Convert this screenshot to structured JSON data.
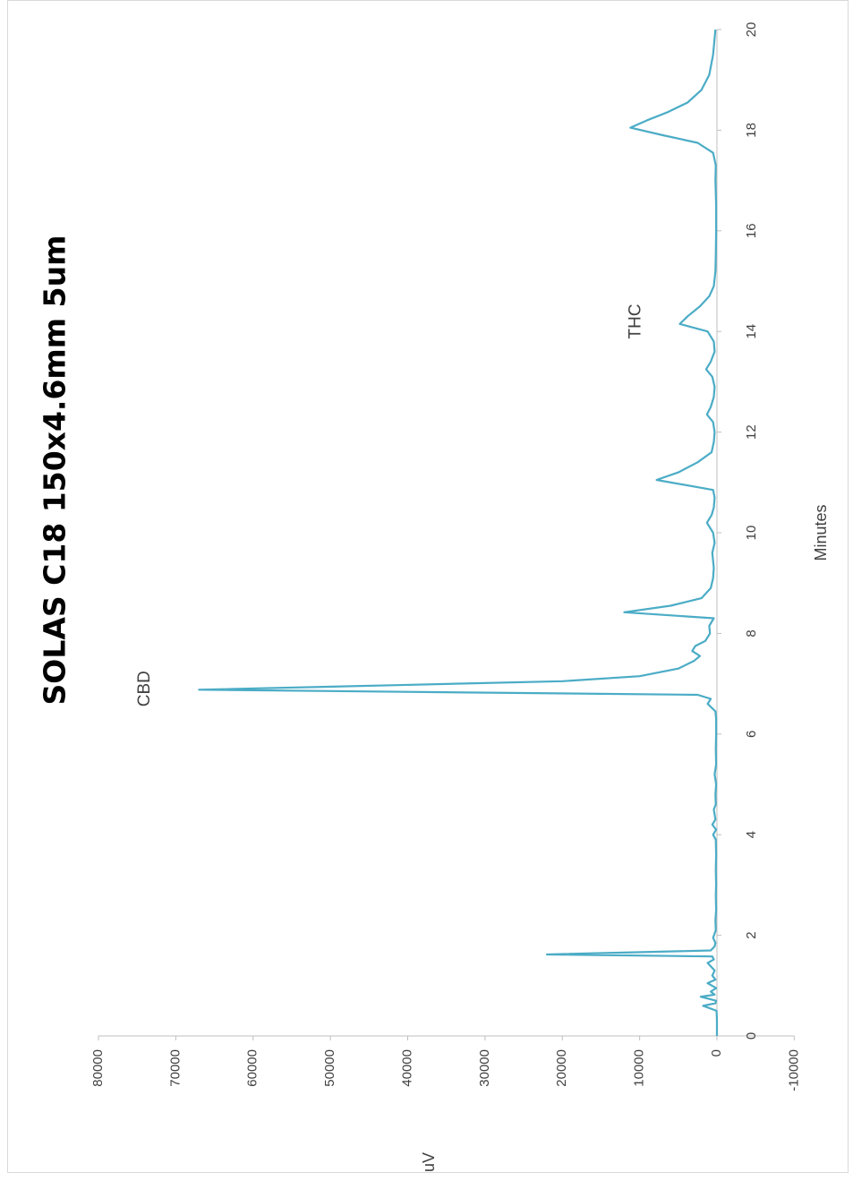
{
  "chart_data": {
    "type": "line",
    "title": "SOLAS C18 150x4.6mm 5um",
    "xlabel": "Minutes",
    "ylabel": "uV",
    "xlim": [
      0,
      20
    ],
    "ylim": [
      -10000,
      80000
    ],
    "x_ticks": [
      "0",
      "2",
      "4",
      "6",
      "8",
      "10",
      "12",
      "14",
      "16",
      "18",
      "20"
    ],
    "y_ticks": [
      "80000",
      "70000",
      "60000",
      "50000",
      "40000",
      "30000",
      "20000",
      "10000",
      "0",
      "-10000"
    ],
    "annotations": [
      {
        "text": "CBD",
        "x": 6.9,
        "y": 74000
      },
      {
        "text": "THC",
        "x": 14.2,
        "y": 10500
      }
    ],
    "line_color": "#4bacc6",
    "series": [
      {
        "points": [
          [
            0.0,
            0
          ],
          [
            0.3,
            0
          ],
          [
            0.5,
            50
          ],
          [
            0.6,
            1800
          ],
          [
            0.65,
            200
          ],
          [
            0.7,
            100
          ],
          [
            0.78,
            2100
          ],
          [
            0.82,
            300
          ],
          [
            0.88,
            800
          ],
          [
            0.95,
            100
          ],
          [
            1.05,
            1200
          ],
          [
            1.12,
            200
          ],
          [
            1.2,
            600
          ],
          [
            1.3,
            300
          ],
          [
            1.45,
            1200
          ],
          [
            1.52,
            400
          ],
          [
            1.58,
            600
          ],
          [
            1.62,
            22000
          ],
          [
            1.7,
            800
          ],
          [
            1.78,
            300
          ],
          [
            1.85,
            200
          ],
          [
            1.95,
            500
          ],
          [
            2.1,
            150
          ],
          [
            2.3,
            200
          ],
          [
            2.5,
            100
          ],
          [
            2.8,
            150
          ],
          [
            3.0,
            100
          ],
          [
            3.3,
            150
          ],
          [
            3.6,
            100
          ],
          [
            3.9,
            150
          ],
          [
            4.0,
            500
          ],
          [
            4.1,
            100
          ],
          [
            4.2,
            600
          ],
          [
            4.3,
            200
          ],
          [
            4.5,
            400
          ],
          [
            4.6,
            150
          ],
          [
            4.8,
            200
          ],
          [
            5.0,
            100
          ],
          [
            5.2,
            300
          ],
          [
            5.4,
            100
          ],
          [
            5.7,
            150
          ],
          [
            6.0,
            100
          ],
          [
            6.3,
            100
          ],
          [
            6.45,
            200
          ],
          [
            6.6,
            1200
          ],
          [
            6.7,
            800
          ],
          [
            6.78,
            2500
          ],
          [
            6.88,
            67000
          ],
          [
            6.97,
            42000
          ],
          [
            7.05,
            20000
          ],
          [
            7.15,
            10000
          ],
          [
            7.3,
            5000
          ],
          [
            7.45,
            3000
          ],
          [
            7.55,
            2200
          ],
          [
            7.65,
            3200
          ],
          [
            7.75,
            2800
          ],
          [
            7.85,
            1500
          ],
          [
            8.0,
            900
          ],
          [
            8.15,
            1000
          ],
          [
            8.3,
            400
          ],
          [
            8.42,
            12000
          ],
          [
            8.55,
            6000
          ],
          [
            8.7,
            2000
          ],
          [
            8.9,
            800
          ],
          [
            9.1,
            500
          ],
          [
            9.3,
            400
          ],
          [
            9.6,
            600
          ],
          [
            9.8,
            300
          ],
          [
            10.0,
            500
          ],
          [
            10.2,
            1300
          ],
          [
            10.35,
            700
          ],
          [
            10.5,
            400
          ],
          [
            10.7,
            300
          ],
          [
            10.85,
            500
          ],
          [
            11.05,
            7800
          ],
          [
            11.2,
            5000
          ],
          [
            11.4,
            2500
          ],
          [
            11.6,
            700
          ],
          [
            11.8,
            400
          ],
          [
            12.0,
            300
          ],
          [
            12.2,
            500
          ],
          [
            12.35,
            1300
          ],
          [
            12.5,
            800
          ],
          [
            12.7,
            400
          ],
          [
            12.9,
            300
          ],
          [
            13.1,
            600
          ],
          [
            13.25,
            1400
          ],
          [
            13.4,
            800
          ],
          [
            13.6,
            300
          ],
          [
            13.8,
            400
          ],
          [
            14.0,
            1200
          ],
          [
            14.15,
            4800
          ],
          [
            14.3,
            3800
          ],
          [
            14.5,
            2200
          ],
          [
            14.7,
            1000
          ],
          [
            14.9,
            400
          ],
          [
            15.2,
            200
          ],
          [
            15.5,
            150
          ],
          [
            16.0,
            100
          ],
          [
            16.5,
            100
          ],
          [
            17.0,
            200
          ],
          [
            17.3,
            150
          ],
          [
            17.55,
            500
          ],
          [
            17.75,
            2500
          ],
          [
            17.9,
            7000
          ],
          [
            18.05,
            11200
          ],
          [
            18.2,
            9000
          ],
          [
            18.35,
            6500
          ],
          [
            18.55,
            3800
          ],
          [
            18.8,
            2000
          ],
          [
            19.1,
            1000
          ],
          [
            19.5,
            500
          ],
          [
            20.0,
            200
          ]
        ]
      }
    ]
  }
}
